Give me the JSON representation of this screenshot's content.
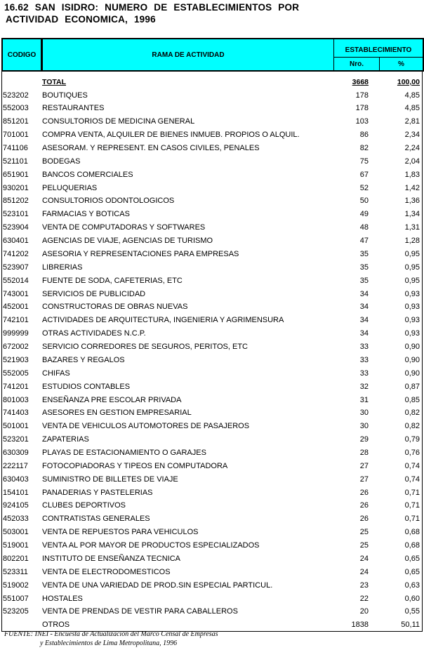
{
  "title": {
    "line1": "16.62  SAN  ISIDRO:  NUMERO  DE  ESTABLECIMIENTOS  POR",
    "line2": "ACTIVIDAD  ECONOMICA,  1996"
  },
  "header": {
    "codigo": "CODIGO",
    "rama": "RAMA DE ACTIVIDAD",
    "establecimiento": "ESTABLECIMIENTO",
    "nro": "Nro.",
    "pct": "%"
  },
  "total": {
    "label": "TOTAL",
    "nro": "3668",
    "pct": "100,00"
  },
  "rows": [
    [
      "523202",
      "BOUTIQUES",
      "178",
      "4,85"
    ],
    [
      "552003",
      "RESTAURANTES",
      "178",
      "4,85"
    ],
    [
      "851201",
      "CONSULTORIOS DE MEDICINA GENERAL",
      "103",
      "2,81"
    ],
    [
      "701001",
      "COMPRA VENTA, ALQUILER DE BIENES INMUEB. PROPIOS O ALQUIL.",
      "86",
      "2,34"
    ],
    [
      "741106",
      "ASESORAM. Y REPRESENT. EN CASOS CIVILES, PENALES",
      "82",
      "2,24"
    ],
    [
      "521101",
      "BODEGAS",
      "75",
      "2,04"
    ],
    [
      "651901",
      "BANCOS COMERCIALES",
      "67",
      "1,83"
    ],
    [
      "930201",
      "PELUQUERIAS",
      "52",
      "1,42"
    ],
    [
      "851202",
      "CONSULTORIOS ODONTOLOGICOS",
      "50",
      "1,36"
    ],
    [
      "523101",
      "FARMACIAS Y BOTICAS",
      "49",
      "1,34"
    ],
    [
      "523904",
      "VENTA DE COMPUTADORAS Y SOFTWARES",
      "48",
      "1,31"
    ],
    [
      "630401",
      "AGENCIAS DE VIAJE, AGENCIAS DE TURISMO",
      "47",
      "1,28"
    ],
    [
      "741202",
      "ASESORIA Y REPRESENTACIONES PARA EMPRESAS",
      "35",
      "0,95"
    ],
    [
      "523907",
      "LIBRERIAS",
      "35",
      "0,95"
    ],
    [
      "552014",
      "FUENTE DE SODA, CAFETERIAS, ETC",
      "35",
      "0,95"
    ],
    [
      "743001",
      "SERVICIOS DE PUBLICIDAD",
      "34",
      "0,93"
    ],
    [
      "452001",
      "CONSTRUCTORAS DE OBRAS NUEVAS",
      "34",
      "0,93"
    ],
    [
      "742101",
      "ACTIVIDADES DE ARQUITECTURA, INGENIERIA Y AGRIMENSURA",
      "34",
      "0,93"
    ],
    [
      "999999",
      "OTRAS ACTIVIDADES N.C.P.",
      "34",
      "0,93"
    ],
    [
      "672002",
      "SERVICIO CORREDORES DE SEGUROS, PERITOS, ETC",
      "33",
      "0,90"
    ],
    [
      "521903",
      "BAZARES Y REGALOS",
      "33",
      "0,90"
    ],
    [
      "552005",
      "CHIFAS",
      "33",
      "0,90"
    ],
    [
      "741201",
      "ESTUDIOS CONTABLES",
      "32",
      "0,87"
    ],
    [
      "801003",
      "ENSEÑANZA PRE ESCOLAR PRIVADA",
      "31",
      "0,85"
    ],
    [
      "741403",
      "ASESORES EN GESTION EMPRESARIAL",
      "30",
      "0,82"
    ],
    [
      "501001",
      "VENTA DE VEHICULOS AUTOMOTORES DE PASAJEROS",
      "30",
      "0,82"
    ],
    [
      "523201",
      "ZAPATERIAS",
      "29",
      "0,79"
    ],
    [
      "630309",
      "PLAYAS DE ESTACIONAMIENTO O GARAJES",
      "28",
      "0,76"
    ],
    [
      "222117",
      "FOTOCOPIADORAS Y TIPEOS EN COMPUTADORA",
      "27",
      "0,74"
    ],
    [
      "630403",
      "SUMINISTRO DE BILLETES DE VIAJE",
      "27",
      "0,74"
    ],
    [
      "154101",
      "PANADERIAS Y PASTELERIAS",
      "26",
      "0,71"
    ],
    [
      "924105",
      "CLUBES DEPORTIVOS",
      "26",
      "0,71"
    ],
    [
      "452033",
      "CONTRATISTAS GENERALES",
      "26",
      "0,71"
    ],
    [
      "503001",
      "VENTA DE REPUESTOS PARA VEHICULOS",
      "25",
      "0,68"
    ],
    [
      "519001",
      "VENTA AL POR MAYOR DE PRODUCTOS ESPECIALIZADOS",
      "25",
      "0,68"
    ],
    [
      "802201",
      "INSTITUTO DE ENSEÑANZA TECNICA",
      "24",
      "0,65"
    ],
    [
      "523311",
      "VENTA DE ELECTRODOMESTICOS",
      "24",
      "0,65"
    ],
    [
      "519002",
      "VENTA DE UNA VARIEDAD DE PROD.SIN ESPECIAL PARTICUL.",
      "23",
      "0,63"
    ],
    [
      "551007",
      "HOSTALES",
      "22",
      "0,60"
    ],
    [
      "523205",
      "VENTA DE PRENDAS DE VESTIR PARA CABALLEROS",
      "20",
      "0,55"
    ],
    [
      "",
      "OTROS",
      "1838",
      "50,11"
    ]
  ],
  "source": {
    "line1": "FUENTE: INEI - Encuesta de Actualización del Marco Censal de Empresas",
    "line2": "y Establecimientos de Lima Metropolitana, 1996"
  },
  "colors": {
    "header_bg": "#00ffff"
  }
}
